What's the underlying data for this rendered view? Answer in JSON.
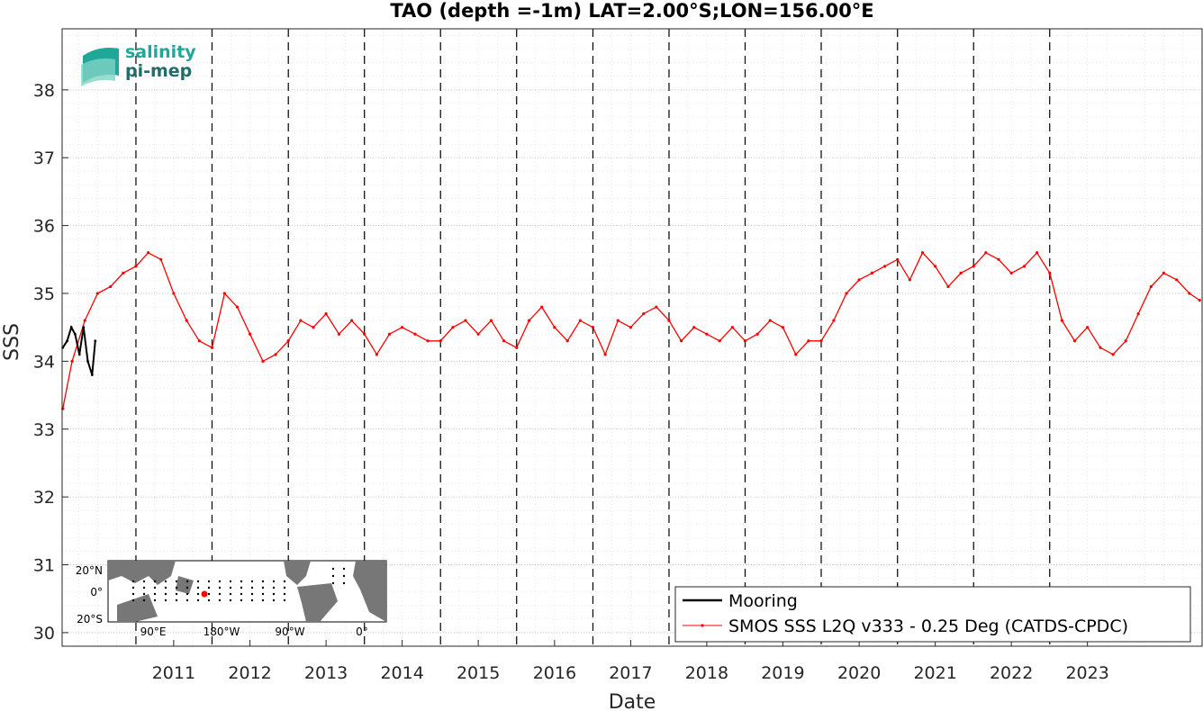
{
  "chart_data": {
    "type": "line",
    "title": "TAO (depth =-1m) LAT=2.00°S;LON=156.00°E",
    "xlabel": "Date",
    "ylabel": "SSS",
    "xlim": [
      "2010-01-12",
      "2025-01-01"
    ],
    "ylim": [
      29.8,
      38.9
    ],
    "yticks": [
      30,
      31,
      32,
      33,
      34,
      35,
      36,
      37,
      38
    ],
    "xticks": [
      "2011",
      "2012",
      "2013",
      "2014",
      "2015",
      "2016",
      "2017",
      "2018",
      "2019",
      "2020",
      "2021",
      "2022",
      "2023"
    ],
    "grid": true,
    "legend_position": "bottom-right",
    "year_boundaries_dashed": true,
    "series": [
      {
        "name": "Mooring",
        "color": "#000000",
        "x": [
          "2010-01-15",
          "2010-02-05",
          "2010-02-25",
          "2010-03-15",
          "2010-04-05",
          "2010-04-25",
          "2010-05-15",
          "2010-06-05",
          "2010-06-20"
        ],
        "values": [
          34.2,
          34.3,
          34.5,
          34.4,
          34.1,
          34.5,
          34.0,
          33.8,
          34.3
        ]
      },
      {
        "name": "SMOS SSS L2Q v333 - 0.25 Deg (CATDS-CPDC)",
        "color": "#ff0000",
        "x": [
          "2010-01-15",
          "2010-03-01",
          "2010-05-01",
          "2010-07-01",
          "2010-09-01",
          "2010-11-01",
          "2011-01-01",
          "2011-03-01",
          "2011-05-01",
          "2011-07-01",
          "2011-09-01",
          "2011-11-01",
          "2012-01-01",
          "2012-03-01",
          "2012-05-01",
          "2012-07-01",
          "2012-09-01",
          "2012-11-01",
          "2013-01-01",
          "2013-03-01",
          "2013-05-01",
          "2013-07-01",
          "2013-09-01",
          "2013-11-01",
          "2014-01-01",
          "2014-03-01",
          "2014-05-01",
          "2014-07-01",
          "2014-09-01",
          "2014-11-01",
          "2015-01-01",
          "2015-03-01",
          "2015-05-01",
          "2015-07-01",
          "2015-09-01",
          "2015-11-01",
          "2016-01-01",
          "2016-03-01",
          "2016-05-01",
          "2016-07-01",
          "2016-09-01",
          "2016-11-01",
          "2017-01-01",
          "2017-03-01",
          "2017-05-01",
          "2017-07-01",
          "2017-09-01",
          "2017-11-01",
          "2018-01-01",
          "2018-03-01",
          "2018-05-01",
          "2018-07-01",
          "2018-09-01",
          "2018-11-01",
          "2019-01-01",
          "2019-03-01",
          "2019-05-01",
          "2019-07-01",
          "2019-09-01",
          "2019-11-01",
          "2020-01-01",
          "2020-03-01",
          "2020-05-01",
          "2020-07-01",
          "2020-09-01",
          "2020-11-01",
          "2021-01-01",
          "2021-03-01",
          "2021-05-01",
          "2021-07-01",
          "2021-09-01",
          "2021-11-01",
          "2022-01-01",
          "2022-03-01",
          "2022-05-01",
          "2022-07-01",
          "2022-09-01",
          "2022-11-01",
          "2023-01-01",
          "2023-03-01",
          "2023-05-01",
          "2023-07-01",
          "2023-09-01",
          "2023-11-01",
          "2024-01-01",
          "2024-03-01",
          "2024-05-01",
          "2024-07-01",
          "2024-09-01",
          "2024-11-01",
          "2024-12-20"
        ],
        "values": [
          33.3,
          34.0,
          34.6,
          35.0,
          35.1,
          35.3,
          35.4,
          35.6,
          35.5,
          35.0,
          34.6,
          34.3,
          34.2,
          35.0,
          34.8,
          34.4,
          34.0,
          34.1,
          34.3,
          34.6,
          34.5,
          34.7,
          34.4,
          34.6,
          34.4,
          34.1,
          34.4,
          34.5,
          34.4,
          34.3,
          34.3,
          34.5,
          34.6,
          34.4,
          34.6,
          34.3,
          34.2,
          34.6,
          34.8,
          34.5,
          34.3,
          34.6,
          34.5,
          34.1,
          34.6,
          34.5,
          34.7,
          34.8,
          34.6,
          34.3,
          34.5,
          34.4,
          34.3,
          34.5,
          34.3,
          34.4,
          34.6,
          34.5,
          34.1,
          34.3,
          34.3,
          34.6,
          35.0,
          35.2,
          35.3,
          35.4,
          35.5,
          35.2,
          35.6,
          35.4,
          35.1,
          35.3,
          35.4,
          35.6,
          35.5,
          35.3,
          35.4,
          35.6,
          35.3,
          34.6,
          34.3,
          34.5,
          34.2,
          34.1,
          34.3,
          34.7,
          35.1,
          35.3,
          35.2,
          35.0,
          34.9
        ]
      }
    ]
  },
  "inset_map": {
    "lat_labels": [
      "20°N",
      "0°",
      "20°S"
    ],
    "lon_labels": [
      "90°E",
      "180°W",
      "90°W",
      "0°"
    ],
    "marker_color": "#ff0000"
  },
  "logo": {
    "line1": "salinity",
    "line2": "pi-mep"
  }
}
